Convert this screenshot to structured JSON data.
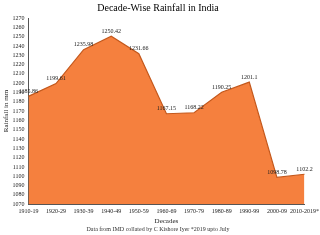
{
  "chart_data": {
    "type": "area",
    "title": "Decade-Wise Rainfall in India",
    "subtitle": "Data from IMD collated by C Kishore Iyer *2019 upto July",
    "x_label": "Decades",
    "y_label": "Rainfall in mm",
    "categories": [
      "1910-19",
      "1920-29",
      "1930-39",
      "1940-49",
      "1950-59",
      "1960-69",
      "1970-79",
      "1980-89",
      "1990-99",
      "2000-09",
      "2010-2019*"
    ],
    "values": [
      1185.86,
      1199.61,
      1235.98,
      1250.42,
      1231.66,
      1167.15,
      1168.22,
      1190.25,
      1201.1,
      1098.78,
      1102.2
    ],
    "color": "#f5803e",
    "ylim": [
      1070,
      1270
    ],
    "yticks": [
      1070,
      1080,
      1090,
      1100,
      1110,
      1120,
      1130,
      1140,
      1150,
      1160,
      1170,
      1180,
      1190,
      1200,
      1210,
      1220,
      1230,
      1240,
      1250,
      1260,
      1270
    ],
    "grid": false,
    "data_labels": true
  }
}
